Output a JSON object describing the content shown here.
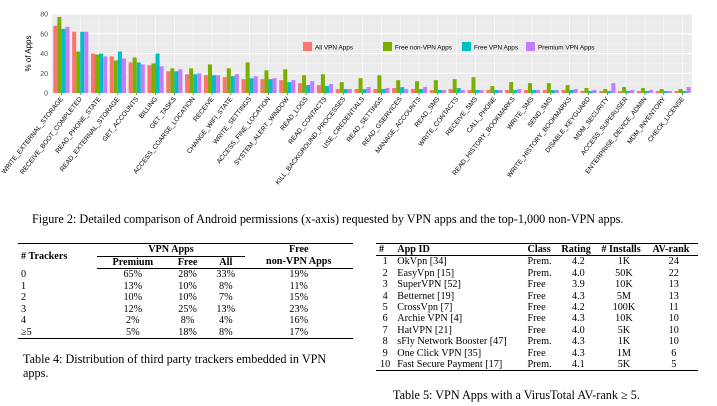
{
  "chart_data": {
    "type": "bar",
    "ylabel": "% of Apps",
    "ylim": [
      0,
      80
    ],
    "yticks": [
      "0",
      "20",
      "40",
      "60",
      "80"
    ],
    "categories": [
      "WRITE_EXTERNAL_STORAGE",
      "RECEIVE_BOOT_COMPLETED",
      "READ_PHONE_STATE",
      "READ_EXTERNAL_STORAGE",
      "GET_ACCOUNTS",
      "BILLING",
      "GET_TASKS",
      "ACCESS_COARSE_LOCATION",
      "RECEIVE",
      "CHANGE_WIFI_STATE",
      "WRITE_SETTINGS",
      "ACCESS_FINE_LOCATION",
      "SYSTEM_ALERT_WINDOW",
      "READ_LOGS",
      "READ_CONTACTS",
      "KILL_BACKGROUND_PROCESSES",
      "USE_CREDENTIALS",
      "READ_SETTINGS",
      "READ_GSERVICES",
      "MANAGE_ACCOUNTS",
      "READ_SMS",
      "WRITE_CONTACTS",
      "RECEIVE_SMS",
      "CALL_PHONE",
      "READ_HISTORY_BOOKMARKS",
      "WRITE_SMS",
      "SEND_SMS",
      "WRITE_HISTORY_BOOKMARKS",
      "DISABLE_KEYGUARD",
      "MDM_SECURITY",
      "ACCESS_SUPERUSER",
      "ENTERPRISE_DEVICE_ADMIN",
      "MDM_INVENTORY",
      "CHECK_LICENSE"
    ],
    "series": [
      {
        "name": "All VPN Apps",
        "color": "#f8766d",
        "values": [
          68,
          62,
          40,
          37,
          31,
          28,
          22,
          19,
          18,
          16,
          14,
          14,
          13,
          10,
          8,
          4,
          4,
          4,
          5,
          4,
          3,
          4,
          3,
          3,
          3,
          3,
          3,
          3,
          2,
          2,
          2,
          2,
          2,
          2
        ]
      },
      {
        "name": "Free non-VPN Apps",
        "color": "#7cae00",
        "values": [
          77,
          42,
          39,
          33,
          36,
          30,
          25,
          25,
          29,
          25,
          31,
          23,
          24,
          18,
          19,
          11,
          15,
          18,
          13,
          12,
          13,
          14,
          16,
          7,
          11,
          10,
          10,
          8,
          5,
          4,
          6,
          5,
          4,
          4
        ]
      },
      {
        "name": "Free VPN Apps",
        "color": "#00bfc4",
        "values": [
          65,
          62,
          40,
          42,
          31,
          40,
          22,
          19,
          18,
          17,
          15,
          14,
          11,
          8,
          7,
          4,
          4,
          4,
          6,
          4,
          3,
          5,
          3,
          3,
          3,
          3,
          3,
          3,
          2,
          2,
          2,
          2,
          2,
          2
        ]
      },
      {
        "name": "Premium VPN Apps",
        "color": "#c77cff",
        "values": [
          67,
          62,
          37,
          35,
          29,
          27,
          24,
          20,
          18,
          19,
          17,
          15,
          13,
          12,
          9,
          4,
          6,
          5,
          4,
          6,
          3,
          3,
          3,
          3,
          4,
          3,
          3,
          4,
          3,
          10,
          3,
          3,
          2,
          6
        ]
      }
    ]
  },
  "figure_caption": "Figure 2: Detailed comparison of Android permissions (x-axis) requested by VPN apps and the top-1,000 non-VPN apps.",
  "table4": {
    "header_trackers": "# Trackers",
    "header_group_vpn": "VPN Apps",
    "header_free_line1": "Free",
    "header_free_line2": "non-VPN Apps",
    "sub_premium": "Premium",
    "sub_free": "Free",
    "sub_all": "All",
    "rows": [
      {
        "trackers": "0",
        "premium": "65%",
        "free": "28%",
        "all": "33%",
        "nonvpn": "19%"
      },
      {
        "trackers": "1",
        "premium": "13%",
        "free": "10%",
        "all": "8%",
        "nonvpn": "11%"
      },
      {
        "trackers": "2",
        "premium": "10%",
        "free": "10%",
        "all": "7%",
        "nonvpn": "15%"
      },
      {
        "trackers": "3",
        "premium": "12%",
        "free": "25%",
        "all": "13%",
        "nonvpn": "23%"
      },
      {
        "trackers": "4",
        "premium": "2%",
        "free": "8%",
        "all": "4%",
        "nonvpn": "16%"
      },
      {
        "trackers": "≥5",
        "premium": "5%",
        "free": "18%",
        "all": "8%",
        "nonvpn": "17%"
      }
    ],
    "caption": "Table 4: Distribution of third party trackers embedded in VPN apps."
  },
  "table5": {
    "headers": {
      "num": "#",
      "app": "App ID",
      "class": "Class",
      "rating": "Rating",
      "installs": "# Installs",
      "av": "AV-rank"
    },
    "rows": [
      {
        "num": "1",
        "app": "OkVpn [34]",
        "class": "Prem.",
        "rating": "4.2",
        "installs": "1K",
        "av": "24"
      },
      {
        "num": "2",
        "app": "EasyVpn [15]",
        "class": "Prem.",
        "rating": "4.0",
        "installs": "50K",
        "av": "22"
      },
      {
        "num": "3",
        "app": "SuperVPN [52]",
        "class": "Free",
        "rating": "3.9",
        "installs": "10K",
        "av": "13"
      },
      {
        "num": "4",
        "app": "Betternet [19]",
        "class": "Free",
        "rating": "4.3",
        "installs": "5M",
        "av": "13"
      },
      {
        "num": "5",
        "app": "CrossVpn [7]",
        "class": "Free",
        "rating": "4.2",
        "installs": "100K",
        "av": "11"
      },
      {
        "num": "6",
        "app": "Archie VPN [4]",
        "class": "Free",
        "rating": "4.3",
        "installs": "10K",
        "av": "10"
      },
      {
        "num": "7",
        "app": "HatVPN [21]",
        "class": "Free",
        "rating": "4.0",
        "installs": "5K",
        "av": "10"
      },
      {
        "num": "8",
        "app": "sFly Network Booster [47]",
        "class": "Prem.",
        "rating": "4.3",
        "installs": "1K",
        "av": "10"
      },
      {
        "num": "9",
        "app": "One Click VPN [35]",
        "class": "Free",
        "rating": "4.3",
        "installs": "1M",
        "av": "6"
      },
      {
        "num": "10",
        "app": "Fast Secure Payment [17]",
        "class": "Prem.",
        "rating": "4.1",
        "installs": "5K",
        "av": "5"
      }
    ],
    "caption": "Table 5: VPN Apps with a VirusTotal AV-rank ≥ 5."
  }
}
